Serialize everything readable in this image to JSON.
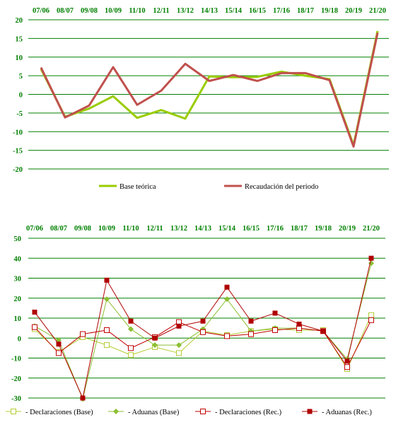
{
  "colors": {
    "grid": "#008000",
    "axis_text": "#008000",
    "base": "#99cc00",
    "recaudacion": "#c0504d",
    "dec_base": "#b5cc33",
    "adu_base": "#8cbf33",
    "dec_rec": "#c00000",
    "adu_rec": "#b00000"
  },
  "chart_data": [
    {
      "type": "line",
      "categories": [
        "07/06",
        "08/07",
        "09/08",
        "10/09",
        "11/10",
        "12/11",
        "13/12",
        "14/13",
        "15/14",
        "16/15",
        "17/16",
        "18/17",
        "19/18",
        "20/19",
        "21/20"
      ],
      "ylim": [
        -20,
        20
      ],
      "yticks": [
        -20,
        -15,
        -10,
        -5,
        0,
        5,
        10,
        15,
        20
      ],
      "grid": true,
      "legend_position": "bottom",
      "series": [
        {
          "name": "Base teórica",
          "color": "#99cc00",
          "values": [
            6.8,
            -6.0,
            -3.8,
            -0.5,
            -6.3,
            -4.2,
            -6.5,
            4.8,
            4.6,
            4.7,
            6.1,
            5.0,
            4.1,
            -13.6,
            17.0
          ]
        },
        {
          "name": "Recaudación del periodo",
          "color": "#c0504d",
          "values": [
            7.2,
            -6.2,
            -3.0,
            7.3,
            -2.8,
            1.0,
            8.2,
            3.6,
            5.2,
            3.6,
            5.7,
            5.7,
            3.8,
            -14.0,
            16.5
          ]
        }
      ]
    },
    {
      "type": "line",
      "categories": [
        "07/06",
        "08/07",
        "09/08",
        "10/09",
        "11/10",
        "12/11",
        "13/12",
        "14/13",
        "15/14",
        "16/15",
        "17/16",
        "18/17",
        "19/18",
        "20/19",
        "21/20"
      ],
      "ylim": [
        -30,
        50
      ],
      "yticks": [
        -30,
        -20,
        -10,
        0,
        10,
        20,
        30,
        40,
        50
      ],
      "grid": true,
      "legend_position": "bottom",
      "series": [
        {
          "name": "- Declaraciones (Base)",
          "marker": "open-square",
          "color": "#b5cc33",
          "values": [
            4.5,
            -7.0,
            0.5,
            -3.5,
            -8.5,
            -4.5,
            -7.5,
            3.5,
            1.5,
            3.5,
            4.5,
            4.0,
            4.0,
            -15.5,
            11.5
          ]
        },
        {
          "name": "- Aduanas (Base)",
          "marker": "diamond",
          "color": "#8cbf33",
          "values": [
            6.0,
            -1.0,
            -30.5,
            19.5,
            4.5,
            -3.5,
            -3.5,
            4.5,
            19.5,
            3.5,
            5.0,
            5.0,
            3.5,
            -10.5,
            37.5
          ]
        },
        {
          "name": "- Declaraciones (Rec.)",
          "marker": "open-square",
          "color": "#c00000",
          "values": [
            5.5,
            -7.5,
            2.0,
            4.0,
            -5.0,
            0.5,
            8.0,
            3.0,
            1.0,
            2.0,
            4.0,
            5.0,
            3.5,
            -14.5,
            9.0
          ]
        },
        {
          "name": "- Aduanas (Rec.)",
          "marker": "filled-square",
          "color": "#b00000",
          "values": [
            13.0,
            -3.0,
            -30.0,
            29.0,
            8.5,
            0.0,
            6.0,
            8.5,
            25.5,
            8.5,
            12.5,
            7.0,
            3.5,
            -11.5,
            40.0
          ]
        }
      ]
    }
  ]
}
